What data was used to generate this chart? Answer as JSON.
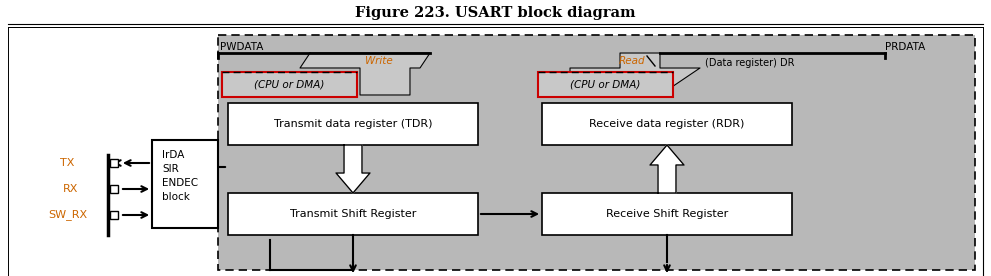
{
  "title": "Figure 223. USART block diagram",
  "title_fontsize": 10.5,
  "title_fontweight": "bold",
  "bg_color": "#ffffff",
  "gray_bg": "#b8b8b8",
  "white": "#ffffff",
  "pwdata_label": "PWDATA",
  "prdata_label": "PRDATA",
  "write_label": "Write",
  "read_label": "Read",
  "dr_label": "(Data register) DR",
  "cpu_dma_label": "(CPU or DMA)",
  "tdr_label": "Transmit data register (TDR)",
  "rdr_label": "Receive data register (RDR)",
  "tsr_label": "Transmit Shift Register",
  "rsr_label": "Receive Shift Register",
  "irda_label": "IrDA\nSIR\nENDEC\nblock",
  "tx_label": "TX",
  "rx_label": "RX",
  "sw_rx_label": "SW_RX",
  "orange": "#cc6600",
  "red": "#cc0000"
}
